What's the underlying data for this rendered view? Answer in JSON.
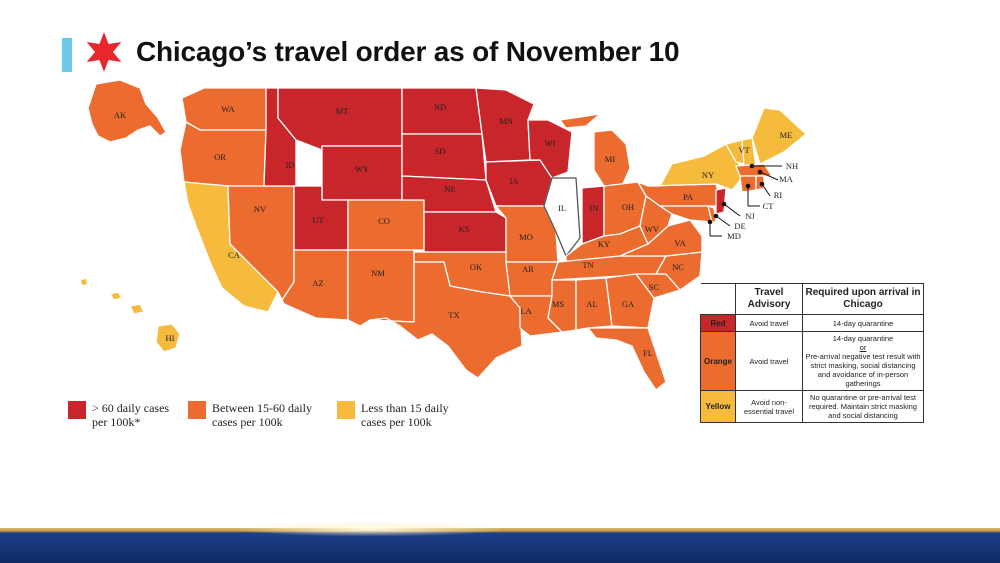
{
  "title": "Chicago’s travel order as of November 10",
  "colors": {
    "red": "#c8262a",
    "orange": "#ec6b2f",
    "yellow": "#f6bb3c",
    "white": "#ffffff",
    "accent": "#6cc9ea",
    "star": "#e8282e"
  },
  "states": {
    "AK": "AK",
    "WA": "WA",
    "OR": "OR",
    "CA": "CA",
    "NV": "NV",
    "ID": "ID",
    "MT": "MT",
    "WY": "WY",
    "UT": "UT",
    "AZ": "AZ",
    "CO": "CO",
    "NM": "NM",
    "ND": "ND",
    "SD": "SD",
    "NE": "NE",
    "KS": "KS",
    "OK": "OK",
    "TX": "TX",
    "MN": "MN",
    "IA": "IA",
    "MO": "MO",
    "AR": "AR",
    "LA": "LA",
    "WI": "WI",
    "IL": "IL",
    "IN": "IN",
    "MI": "MI",
    "OH": "OH",
    "KY": "KY",
    "TN": "TN",
    "MS": "MS",
    "AL": "AL",
    "GA": "GA",
    "FL": "FL",
    "SC": "SC",
    "NC": "NC",
    "VA": "VA",
    "WV": "WV",
    "PA": "PA",
    "NY": "NY",
    "VT": "VT",
    "ME": "ME",
    "NH": "NH",
    "MA": "MA",
    "RI": "RI",
    "CT": "CT",
    "NJ": "NJ",
    "DE": "DE",
    "MD": "MD",
    "HI": "HI"
  },
  "legend": {
    "red": {
      "line1": "> 60 daily cases",
      "line2": "per 100k*"
    },
    "orange": {
      "line1": "Between 15-60 daily",
      "line2": "cases per 100k"
    },
    "yellow": {
      "line1": "Less than 15 daily",
      "line2": "cases per 100k"
    }
  },
  "table": {
    "headers": {
      "advisory": "Travel Advisory",
      "required": "Required upon arrival in Chicago"
    },
    "rows": [
      {
        "level": "Red",
        "advisory": "Avoid travel",
        "required": "14-day quarantine"
      },
      {
        "level": "Orange",
        "advisory": "Avoid travel",
        "required_a": "14-day quarantine",
        "required_or": "or",
        "required_b": "Pre-arrival negative test result with strict masking, social distancing and avoidance of in-person gatherings"
      },
      {
        "level": "Yellow",
        "advisory": "Avoid non-essential travel",
        "required": "No quarantine or pre-arrival test required. Maintain strict masking and social distancing"
      }
    ]
  }
}
